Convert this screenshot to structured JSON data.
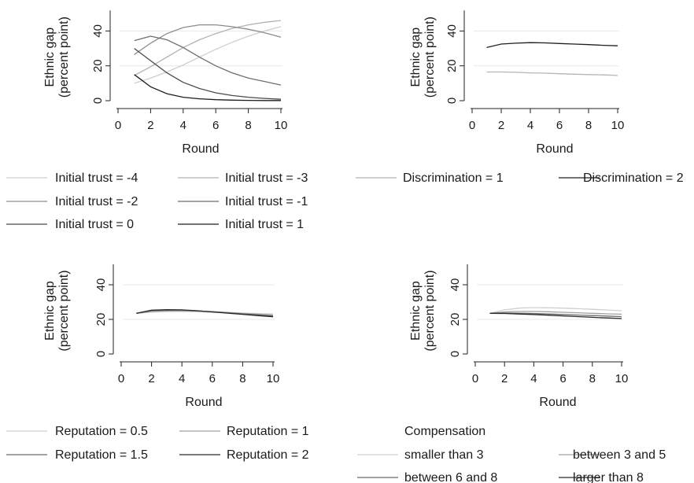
{
  "figure": {
    "y_axis_label_line1": "Ethnic gap",
    "y_axis_label_line2": "(percent point)",
    "x_axis_label": "Round"
  },
  "chart_data": [
    {
      "type": "line",
      "title": "",
      "xlabel": "Round",
      "ylabel": "Ethnic gap (percent point)",
      "xlim": [
        0,
        10
      ],
      "ylim": [
        0,
        50
      ],
      "xticks": [
        0,
        2,
        4,
        6,
        8,
        10
      ],
      "yticks": [
        0,
        20,
        40
      ],
      "grid": true,
      "legend_position": "bottom",
      "x": [
        1,
        2,
        3,
        4,
        5,
        6,
        7,
        8,
        9,
        10
      ],
      "series": [
        {
          "name": "Initial trust = -4",
          "color": "#cfcfcf",
          "values": [
            10,
            13,
            16.5,
            20.5,
            25,
            29.5,
            33.5,
            37,
            40,
            42.5
          ]
        },
        {
          "name": "Initial trust = -3",
          "color": "#b2b2b2",
          "values": [
            14.5,
            19.5,
            25,
            30.5,
            35,
            38.5,
            41.5,
            43.5,
            45,
            46
          ]
        },
        {
          "name": "Initial trust = -2",
          "color": "#8c8c8c",
          "values": [
            26.5,
            33,
            38.5,
            42,
            43.5,
            43.5,
            42.5,
            41,
            39,
            36.5
          ]
        },
        {
          "name": "Initial trust = -1",
          "color": "#6e6e6e",
          "values": [
            34.5,
            37,
            35,
            30.5,
            25,
            20,
            16,
            13,
            11,
            9
          ]
        },
        {
          "name": "Initial trust = 0",
          "color": "#4a4a4a",
          "values": [
            30,
            23,
            16,
            10.5,
            7,
            4.5,
            3,
            2,
            1.3,
            0.8
          ]
        },
        {
          "name": "Initial trust = 1",
          "color": "#1e1e1e",
          "values": [
            15,
            8,
            4,
            2,
            1.1,
            0.6,
            0.3,
            0.2,
            0.1,
            0.1
          ]
        }
      ]
    },
    {
      "type": "line",
      "title": "",
      "xlabel": "Round",
      "ylabel": "Ethnic gap (percent point)",
      "xlim": [
        0,
        10
      ],
      "ylim": [
        0,
        50
      ],
      "xticks": [
        0,
        2,
        4,
        6,
        8,
        10
      ],
      "yticks": [
        0,
        20,
        40
      ],
      "grid": true,
      "legend_position": "bottom",
      "x": [
        1,
        2,
        3,
        4,
        5,
        6,
        7,
        8,
        9,
        10
      ],
      "series": [
        {
          "name": "Discrimination = 1",
          "color": "#b5b5b5",
          "values": [
            16.5,
            16.5,
            16.3,
            16,
            15.8,
            15.5,
            15.2,
            15,
            14.8,
            14.5
          ]
        },
        {
          "name": "Discrimination = 2",
          "color": "#1e1e1e",
          "values": [
            30.5,
            32.5,
            33,
            33.3,
            33.2,
            32.8,
            32.5,
            32.2,
            31.8,
            31.5
          ]
        }
      ]
    },
    {
      "type": "line",
      "title": "",
      "xlabel": "Round",
      "ylabel": "Ethnic gap (percent point)",
      "xlim": [
        0,
        10
      ],
      "ylim": [
        0,
        50
      ],
      "xticks": [
        0,
        2,
        4,
        6,
        8,
        10
      ],
      "yticks": [
        0,
        20,
        40
      ],
      "grid": true,
      "legend_position": "bottom",
      "x": [
        1,
        2,
        3,
        4,
        5,
        6,
        7,
        8,
        9,
        10
      ],
      "series": [
        {
          "name": "Reputation = 0.5",
          "color": "#cfcfcf",
          "values": [
            23.5,
            24.2,
            24.5,
            24.5,
            24.3,
            24,
            23.8,
            23.6,
            23.4,
            23.2
          ]
        },
        {
          "name": "Reputation = 1",
          "color": "#a0a0a0",
          "values": [
            23.5,
            24.6,
            24.9,
            25,
            24.8,
            24.5,
            24,
            23.5,
            23,
            22.5
          ]
        },
        {
          "name": "Reputation = 1.5",
          "color": "#6a6a6a",
          "values": [
            23.5,
            25,
            25.4,
            25.3,
            24.9,
            24.4,
            23.8,
            23.2,
            22.6,
            22
          ]
        },
        {
          "name": "Reputation = 2",
          "color": "#2a2a2a",
          "values": [
            23.5,
            25.3,
            25.6,
            25.5,
            25,
            24.3,
            23.6,
            22.9,
            22.2,
            21.5
          ]
        }
      ]
    },
    {
      "type": "line",
      "title": "",
      "xlabel": "Round",
      "ylabel": "Ethnic gap (percent point)",
      "xlim": [
        0,
        10
      ],
      "ylim": [
        0,
        50
      ],
      "xticks": [
        0,
        2,
        4,
        6,
        8,
        10
      ],
      "yticks": [
        0,
        20,
        40
      ],
      "grid": true,
      "legend_position": "bottom",
      "legend_title": "Compensation",
      "x": [
        1,
        2,
        3,
        4,
        5,
        6,
        7,
        8,
        9,
        10
      ],
      "series": [
        {
          "name": "smaller than 3",
          "color": "#cfcfcf",
          "values": [
            23.5,
            25.5,
            26.5,
            26.8,
            26.7,
            26.5,
            26.2,
            25.8,
            25.4,
            25
          ]
        },
        {
          "name": "between 3 and 5",
          "color": "#a0a0a0",
          "values": [
            23.5,
            24.3,
            24.6,
            24.6,
            24.4,
            24.1,
            23.8,
            23.5,
            23.2,
            23
          ]
        },
        {
          "name": "between 6 and 8",
          "color": "#6a6a6a",
          "values": [
            23.5,
            23.7,
            23.6,
            23.4,
            23.1,
            22.8,
            22.5,
            22.2,
            21.9,
            21.6
          ]
        },
        {
          "name": "larger than 8",
          "color": "#2a2a2a",
          "values": [
            23.5,
            23.4,
            23.1,
            22.8,
            22.4,
            22,
            21.6,
            21.2,
            20.8,
            20.5
          ]
        }
      ]
    }
  ]
}
